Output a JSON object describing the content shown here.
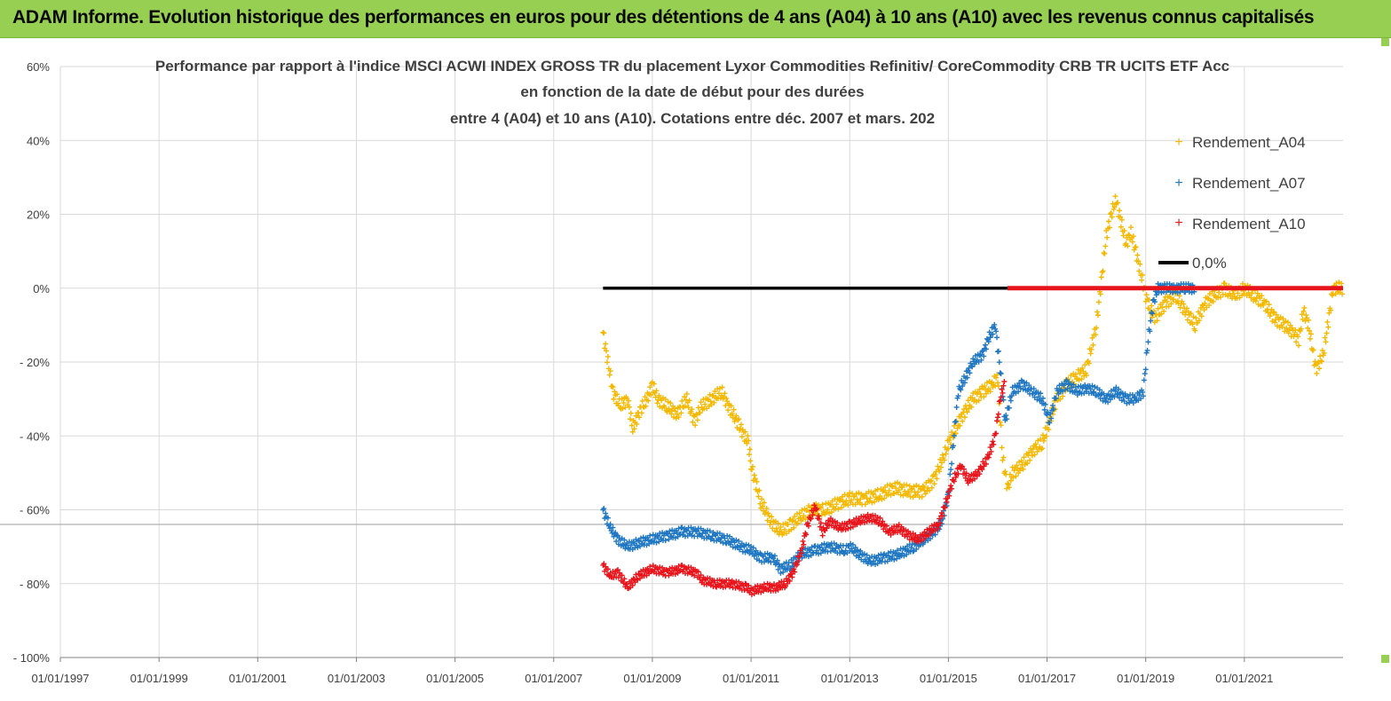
{
  "header": {
    "title": "ADAM Informe. Evolution historique des performances en euros pour des détentions de 4 ans (A04) à 10 ans (A10) avec les revenus connus capitalisés"
  },
  "colors": {
    "banner": "#97cf53",
    "a04": "#f5b800",
    "a07": "#1f77c2",
    "a10": "#e8141b",
    "zero": "#000000",
    "grid": "#d9d9d9"
  },
  "chart_data": {
    "type": "scatter",
    "title": [
      "Performance par rapport à l'indice MSCI ACWI INDEX GROSS TR  du placement Lyxor  Commodities Refinitiv/ CoreCommodity CRB TR UCITS ETF Acc",
      "en fonction de la date de début pour des durées",
      "entre 4 (A04) et 10 ans (A10). Cotations entre déc. 2007 et mars. 202"
    ],
    "xlim": [
      1997.0,
      2023.0
    ],
    "ylim": [
      -100,
      60
    ],
    "x_ticks": [
      1997,
      1999,
      2001,
      2003,
      2005,
      2007,
      2009,
      2011,
      2013,
      2015,
      2017,
      2019,
      2021
    ],
    "x_tick_labels": [
      "01/01/1997",
      "01/01/1999",
      "01/01/2001",
      "01/01/2003",
      "01/01/2005",
      "01/01/2007",
      "01/01/2009",
      "01/01/2011",
      "01/01/2013",
      "01/01/2015",
      "01/01/2017",
      "01/01/2019",
      "01/01/2021"
    ],
    "y_ticks": [
      -100,
      -80,
      -60,
      -40,
      -20,
      0,
      20,
      40,
      60
    ],
    "y_tick_labels": [
      "- 100%",
      "- 80%",
      "- 60%",
      "- 40%",
      "- 20%",
      "0%",
      "20%",
      "40%",
      "60%"
    ],
    "legend_position": "top-right",
    "series": [
      {
        "name": "Rendement_A04",
        "x": [
          2008.0,
          2008.1,
          2008.2,
          2008.35,
          2008.5,
          2008.6,
          2008.75,
          2008.9,
          2009.0,
          2009.1,
          2009.3,
          2009.5,
          2009.7,
          2009.85,
          2010.0,
          2010.2,
          2010.4,
          2010.55,
          2010.75,
          2010.95,
          2011.0,
          2011.2,
          2011.4,
          2011.6,
          2011.8,
          2012.0,
          2012.2,
          2012.5,
          2012.8,
          2013.0,
          2013.3,
          2013.6,
          2013.9,
          2014.2,
          2014.5,
          2014.7,
          2014.9,
          2015.0,
          2015.15,
          2015.3,
          2015.5,
          2015.7,
          2015.9,
          2016.0,
          2016.1,
          2016.2,
          2016.3,
          2016.5,
          2016.7,
          2016.9,
          2017.0,
          2017.2,
          2017.4,
          2017.6,
          2017.8,
          2018.0,
          2018.1,
          2018.2,
          2018.3,
          2018.4,
          2018.5,
          2018.6,
          2018.7,
          2018.8,
          2018.9,
          2019.0,
          2019.1,
          2019.2,
          2019.4,
          2019.6,
          2019.8,
          2020.0,
          2020.2,
          2020.4,
          2020.6,
          2020.8,
          2021.0,
          2021.2,
          2021.4,
          2021.6,
          2021.8,
          2022.0,
          2022.1,
          2022.2,
          2022.3,
          2022.45,
          2022.6,
          2022.8,
          2023.0
        ],
        "y": [
          -12,
          -20,
          -28,
          -32,
          -30,
          -38,
          -33,
          -30,
          -26,
          -30,
          -32,
          -34,
          -30,
          -36,
          -32,
          -30,
          -28,
          -32,
          -37,
          -42,
          -48,
          -58,
          -63,
          -66,
          -64,
          -62,
          -60,
          -60,
          -58,
          -57,
          -57,
          -56,
          -54,
          -55,
          -55,
          -52,
          -46,
          -42,
          -38,
          -34,
          -30,
          -28,
          -26,
          -24,
          -46,
          -54,
          -50,
          -48,
          -44,
          -42,
          -38,
          -30,
          -26,
          -24,
          -22,
          -10,
          2,
          14,
          20,
          24,
          18,
          12,
          15,
          10,
          4,
          -2,
          -6,
          -8,
          -4,
          -2,
          -6,
          -10,
          -4,
          -2,
          0,
          -2,
          0,
          -2,
          -4,
          -8,
          -10,
          -12,
          -14,
          -6,
          -10,
          -22,
          -18,
          0,
          0
        ]
      },
      {
        "name": "Rendement_A07",
        "x": [
          2008.0,
          2008.15,
          2008.3,
          2008.5,
          2008.7,
          2009.0,
          2009.3,
          2009.6,
          2009.9,
          2010.2,
          2010.5,
          2010.8,
          2011.0,
          2011.2,
          2011.45,
          2011.6,
          2011.8,
          2012.0,
          2012.3,
          2012.6,
          2012.9,
          2013.0,
          2013.2,
          2013.4,
          2013.7,
          2014.0,
          2014.3,
          2014.5,
          2014.7,
          2014.85,
          2015.0,
          2015.1,
          2015.2,
          2015.35,
          2015.5,
          2015.7,
          2015.8,
          2015.95,
          2016.05,
          2016.15,
          2016.3,
          2016.5,
          2016.7,
          2016.9,
          2017.05,
          2017.2,
          2017.4,
          2017.6,
          2017.8,
          2018.0,
          2018.2,
          2018.4,
          2018.6,
          2018.8,
          2018.95,
          2019.05,
          2019.15,
          2019.25,
          2019.4,
          2019.6,
          2019.8,
          2020.0
        ],
        "y": [
          -60,
          -65,
          -68,
          -70,
          -69,
          -68,
          -67,
          -66,
          -66,
          -67,
          -68,
          -70,
          -71,
          -73,
          -73,
          -76,
          -75,
          -72,
          -71,
          -70,
          -71,
          -70,
          -72,
          -74,
          -73,
          -72,
          -70,
          -68,
          -66,
          -64,
          -56,
          -42,
          -28,
          -24,
          -20,
          -18,
          -14,
          -10,
          -22,
          -36,
          -28,
          -26,
          -28,
          -30,
          -36,
          -28,
          -26,
          -28,
          -27,
          -28,
          -30,
          -28,
          -30,
          -30,
          -28,
          -14,
          -4,
          0,
          0,
          0,
          0,
          0
        ]
      },
      {
        "name": "Rendement_A10",
        "x": [
          2008.0,
          2008.15,
          2008.3,
          2008.5,
          2008.7,
          2009.0,
          2009.3,
          2009.6,
          2009.9,
          2010.0,
          2010.3,
          2010.6,
          2010.9,
          2011.0,
          2011.3,
          2011.5,
          2011.7,
          2011.85,
          2012.0,
          2012.15,
          2012.3,
          2012.45,
          2012.6,
          2012.8,
          2013.0,
          2013.2,
          2013.4,
          2013.6,
          2013.8,
          2014.0,
          2014.2,
          2014.4,
          2014.6,
          2014.8,
          2014.9,
          2015.0,
          2015.1,
          2015.25,
          2015.4,
          2015.6,
          2015.8,
          2015.95,
          2016.05,
          2016.15
        ],
        "y": [
          -75,
          -78,
          -77,
          -81,
          -78,
          -76,
          -77,
          -76,
          -77,
          -79,
          -80,
          -80,
          -81,
          -82,
          -81,
          -81,
          -80,
          -77,
          -72,
          -64,
          -59,
          -66,
          -63,
          -65,
          -64,
          -63,
          -62,
          -63,
          -66,
          -65,
          -67,
          -68,
          -66,
          -64,
          -60,
          -56,
          -52,
          -48,
          -52,
          -50,
          -46,
          -40,
          -30,
          -25
        ]
      },
      {
        "name": "0,0%",
        "x": [
          2008.0,
          2023.0
        ],
        "y": [
          0,
          0
        ]
      }
    ]
  }
}
